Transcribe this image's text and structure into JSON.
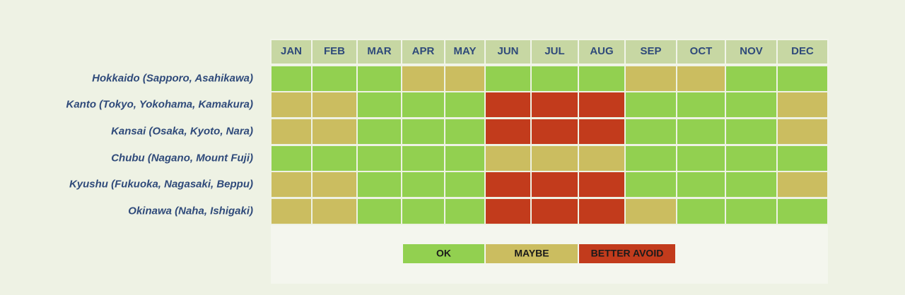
{
  "months": [
    "JAN",
    "FEB",
    "MAR",
    "APR",
    "MAY",
    "JUN",
    "JUL",
    "AUG",
    "SEP",
    "OCT",
    "NOV",
    "DEC"
  ],
  "regions": [
    "Hokkaido (Sapporo, Asahikawa)",
    "Kanto (Tokyo, Yokohama, Kamakura)",
    "Kansai (Osaka, Kyoto, Nara)",
    "Chubu (Nagano, Mount Fuji)",
    "Kyushu (Fukuoka, Nagasaki, Beppu)",
    "Okinawa (Naha, Ishigaki)"
  ],
  "legend": [
    {
      "label": "OK",
      "color": "#92d050"
    },
    {
      "label": "MAYBE",
      "color": "#cbbd60"
    },
    {
      "label": "BETTER AVOID",
      "color": "#c23b1c"
    }
  ],
  "cells": [
    [
      0,
      0,
      0,
      1,
      1,
      0,
      0,
      0,
      1,
      1,
      0,
      0
    ],
    [
      1,
      1,
      0,
      0,
      0,
      2,
      2,
      2,
      0,
      0,
      0,
      1
    ],
    [
      1,
      1,
      0,
      0,
      0,
      2,
      2,
      2,
      0,
      0,
      0,
      1
    ],
    [
      0,
      0,
      0,
      0,
      0,
      1,
      1,
      1,
      0,
      0,
      0,
      0
    ],
    [
      1,
      1,
      0,
      0,
      0,
      2,
      2,
      2,
      0,
      0,
      0,
      1
    ],
    [
      1,
      1,
      0,
      0,
      0,
      2,
      2,
      2,
      1,
      0,
      0,
      0
    ]
  ]
}
